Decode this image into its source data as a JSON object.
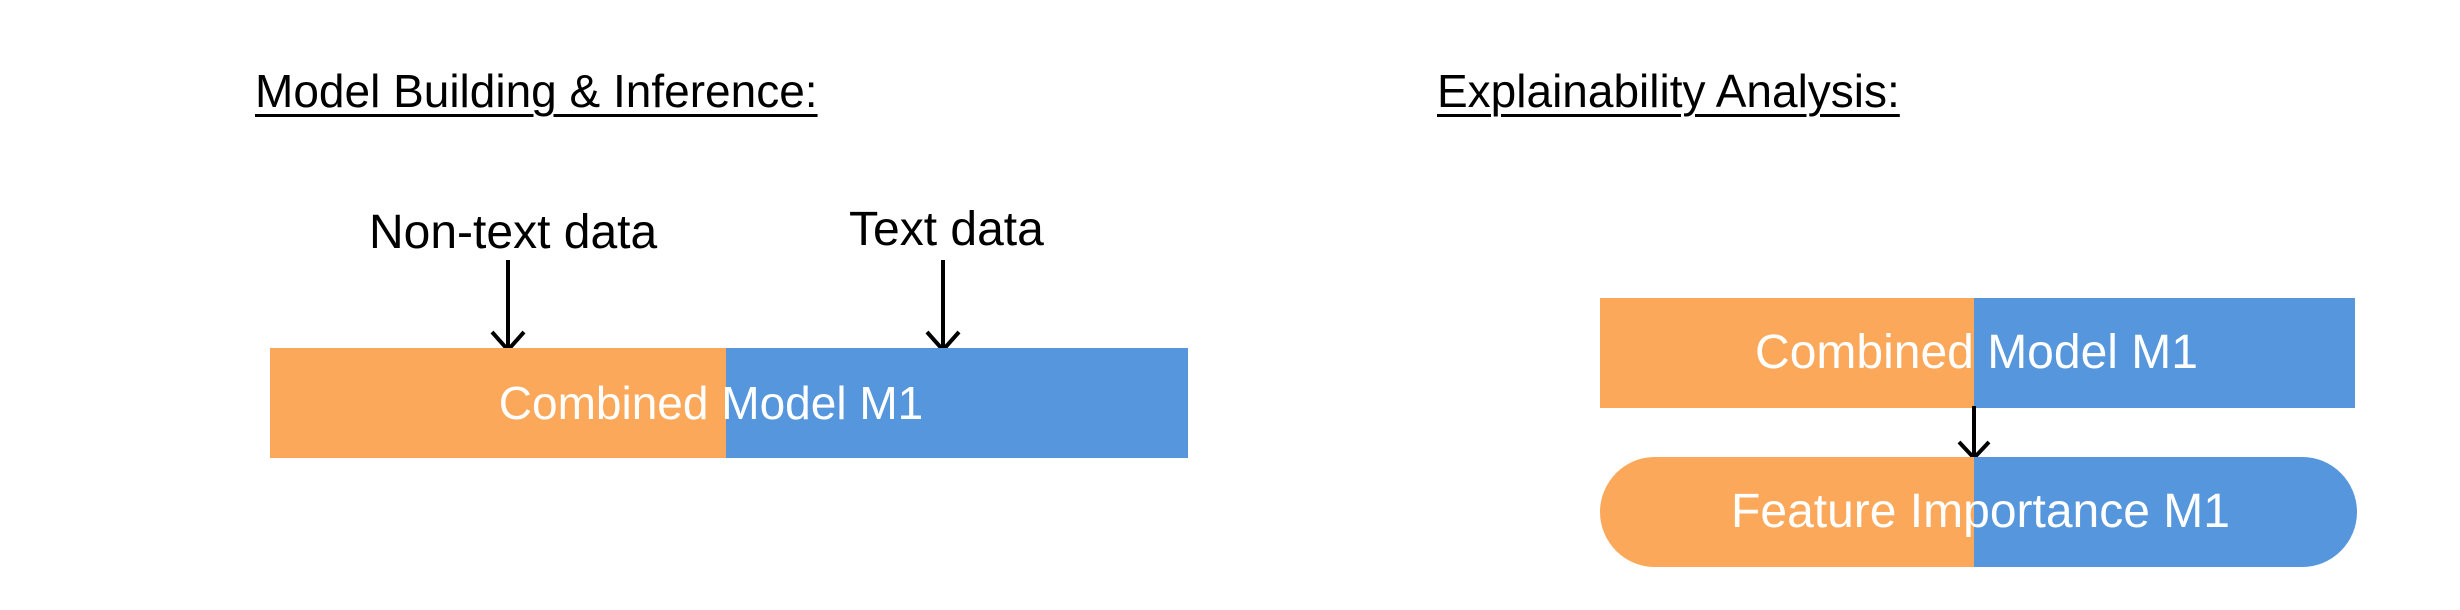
{
  "colors": {
    "orange": "#FBA85B",
    "blue": "#5596DC",
    "text_on_box": "#FFFFFF",
    "arrow": "#000000"
  },
  "left_panel": {
    "heading": "Model Building & Inference:",
    "input_non_text_label": "Non-text data",
    "input_text_label": "Text data",
    "model_box": {
      "label_part1": "Combined",
      "label_part2": "Model M1"
    }
  },
  "right_panel": {
    "heading": "Explainability Analysis:",
    "model_box": {
      "label_part1": "Combined",
      "label_part2": "Model M1"
    },
    "output_box": {
      "label": "Feature Importance M1"
    }
  }
}
